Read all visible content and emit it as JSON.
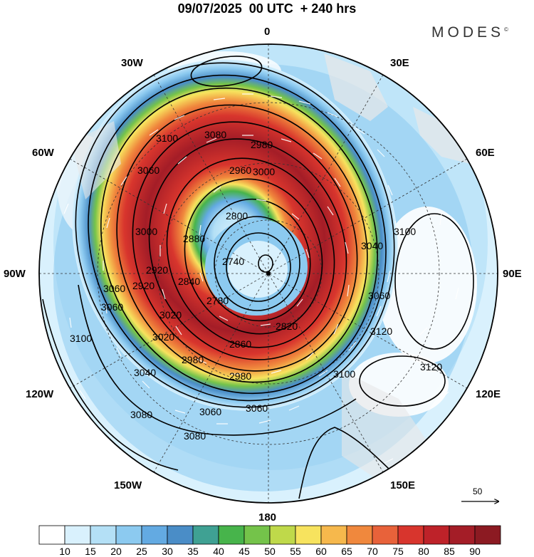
{
  "header": {
    "title": "09/07/2025  00 UTC  + 240 hrs",
    "brand": "MODES",
    "brand_mark": "©"
  },
  "map": {
    "projection": "north-polar-stereographic",
    "field_shaded": "wind speed",
    "contour_field": "geopotential height",
    "longitude_labels": [
      "0",
      "30E",
      "60E",
      "90E",
      "120E",
      "150E",
      "180",
      "150W",
      "120W",
      "90W",
      "60W",
      "30W"
    ],
    "contour_labels": [
      "3100",
      "3080",
      "3060",
      "3000",
      "2980",
      "2960",
      "2920",
      "2800",
      "2740",
      "2780",
      "2820",
      "2860",
      "2980",
      "2980",
      "3020",
      "3040",
      "3060",
      "3060",
      "3080",
      "3080",
      "3100",
      "3120",
      "3120",
      "3100",
      "3060",
      "3040",
      "3060",
      "3060",
      "2920",
      "2840",
      "2880",
      "3000",
      "3020",
      "3100"
    ],
    "reference_vector": "50"
  },
  "colorbar": {
    "colors": [
      "#ffffff",
      "#d9f1fd",
      "#b4e0f6",
      "#8ccaf0",
      "#63aae2",
      "#4a8dc7",
      "#3fa193",
      "#47b44b",
      "#74c34a",
      "#bfd94a",
      "#f7e35e",
      "#f6b84c",
      "#f0883d",
      "#e8623a",
      "#d8352d",
      "#be2229",
      "#a41d27",
      "#8c1a22"
    ],
    "labels": [
      "10",
      "15",
      "20",
      "25",
      "30",
      "35",
      "40",
      "45",
      "50",
      "55",
      "60",
      "65",
      "70",
      "75",
      "80",
      "85",
      "90"
    ]
  }
}
